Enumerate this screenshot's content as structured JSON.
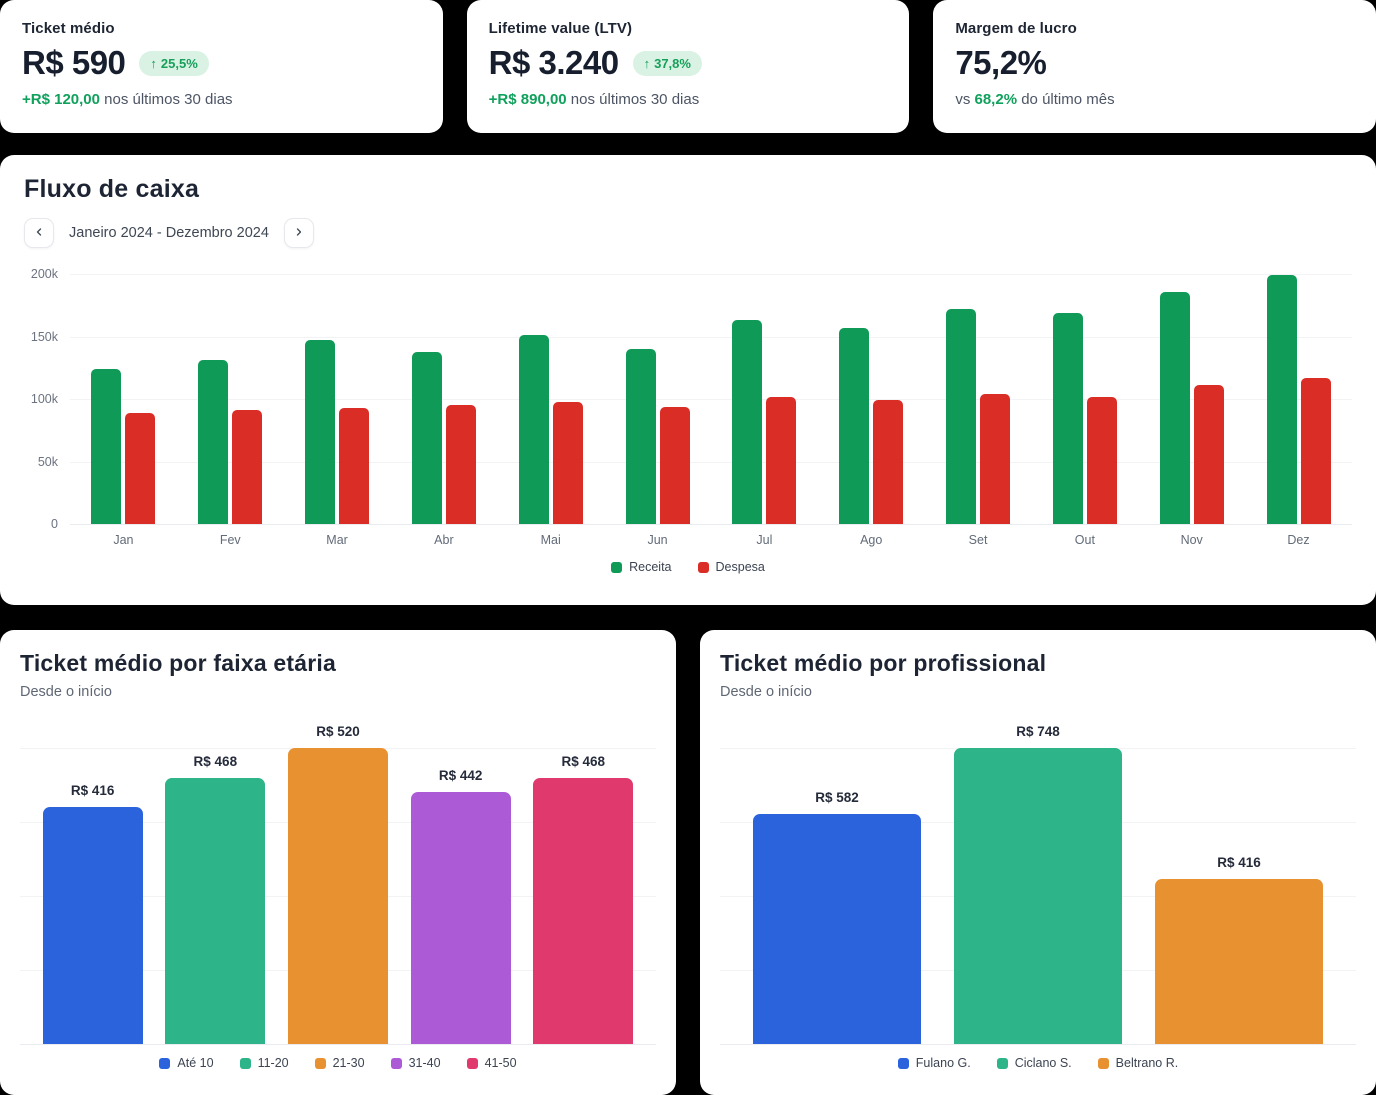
{
  "kpi_cards": [
    {
      "title": "Ticket médio",
      "value": "R$ 590",
      "badge": {
        "arrow": "↑",
        "text": "25,5%"
      },
      "sub": {
        "prefix": "",
        "highlight": "+R$ 120,00",
        "rest": " nos últimos 30 dias"
      }
    },
    {
      "title": "Lifetime value (LTV)",
      "value": "R$ 3.240",
      "badge": {
        "arrow": "↑",
        "text": "37,8%"
      },
      "sub": {
        "prefix": "",
        "highlight": "+R$ 890,00",
        "rest": " nos últimos 30 dias"
      }
    },
    {
      "title": "Margem de lucro",
      "value": "75,2%",
      "sub": {
        "prefix": "vs ",
        "highlight": "68,2%",
        "rest": " do último mês"
      }
    }
  ],
  "cashflow_nav": {
    "period": "Janeiro 2024 - Dezembro 2024",
    "prev_icon": "chevron-left",
    "next_icon": "chevron-right"
  },
  "colors": {
    "receita": "#0f9a58",
    "despesa": "#da2d26",
    "badge_bg": "#d9f2e4",
    "badge_text": "#16a05a",
    "positive_text": "#10a15c"
  },
  "chart_data": [
    {
      "id": "cashflow",
      "type": "bar",
      "title": "Fluxo de caixa",
      "xlabel": "",
      "ylabel": "",
      "ylim": [
        0,
        200000
      ],
      "ytick_labels": [
        "200k",
        "150k",
        "100k",
        "50k",
        "0"
      ],
      "grid": true,
      "legend_position": "bottom",
      "categories": [
        "Jan",
        "Fev",
        "Mar",
        "Abr",
        "Mai",
        "Jun",
        "Jul",
        "Ago",
        "Set",
        "Out",
        "Nov",
        "Dez"
      ],
      "series": [
        {
          "name": "Receita",
          "color": "#0f9a58",
          "values": [
            124000,
            131000,
            147000,
            138000,
            151000,
            140000,
            163000,
            157000,
            172000,
            169000,
            186000,
            199000
          ]
        },
        {
          "name": "Despesa",
          "color": "#da2d26",
          "values": [
            89000,
            91000,
            93000,
            95000,
            98000,
            94000,
            102000,
            99000,
            104000,
            102000,
            111000,
            117000
          ]
        }
      ]
    },
    {
      "id": "age",
      "type": "bar",
      "title": "Ticket médio por faixa etária",
      "subtitle": "Desde o início",
      "xlabel": "",
      "ylabel": "",
      "ylim": [
        0,
        520
      ],
      "grid": true,
      "legend_position": "bottom",
      "categories": [
        "Até 10",
        "11-20",
        "21-30",
        "31-40",
        "41-50"
      ],
      "values": [
        416,
        468,
        520,
        442,
        468
      ],
      "labels": [
        "R$ 416",
        "R$ 468",
        "R$ 520",
        "R$ 442",
        "R$ 468"
      ],
      "colors": [
        "#2a63dc",
        "#2db488",
        "#e89130",
        "#ad5ad6",
        "#e0396e"
      ]
    },
    {
      "id": "professional",
      "type": "bar",
      "title": "Ticket médio por profissional",
      "subtitle": "Desde o início",
      "xlabel": "",
      "ylabel": "",
      "ylim": [
        0,
        748
      ],
      "grid": true,
      "legend_position": "bottom",
      "categories": [
        "Fulano G.",
        "Ciclano S.",
        "Beltrano R."
      ],
      "values": [
        582,
        748,
        416
      ],
      "labels": [
        "R$ 582",
        "R$ 748",
        "R$ 416"
      ],
      "colors": [
        "#2a63dc",
        "#2db488",
        "#e89130"
      ]
    }
  ]
}
